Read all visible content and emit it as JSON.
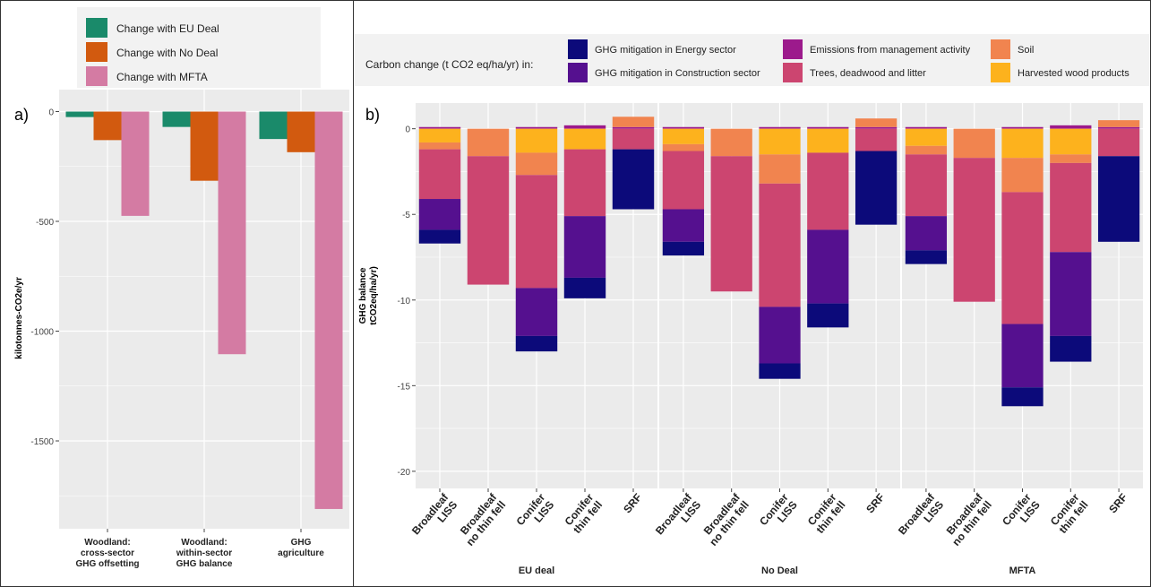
{
  "panel_a": {
    "label": "a)",
    "colors": [
      "#1a8a6a",
      "#d25a0f",
      "#d47ba3"
    ],
    "chart_data": {
      "type": "bar",
      "ylabel": "kilotonnes-CO2e/yr",
      "ylim": [
        -1900,
        100
      ],
      "yticks": [
        0,
        -500,
        -1000,
        -1500
      ],
      "categories": [
        [
          "Woodland:",
          "cross-sector",
          "GHG offsetting"
        ],
        [
          "Woodland:",
          "within-sector",
          "GHG balance"
        ],
        [
          "GHG",
          "agriculture"
        ]
      ],
      "series": [
        {
          "name": "Change with EU Deal",
          "values": [
            -25,
            -70,
            -125
          ]
        },
        {
          "name": "Change with No Deal",
          "values": [
            -130,
            -315,
            -185
          ]
        },
        {
          "name": "Change with MFTA",
          "values": [
            -475,
            -1105,
            -1810
          ]
        }
      ],
      "legend_position": "top"
    }
  },
  "panel_b": {
    "label": "b)",
    "legend_title": "Carbon change (t CO2 eq/ha/yr) in:",
    "legend_items": [
      {
        "key": "energy",
        "name": "GHG mitigation in Energy sector",
        "color": "#0c0a7a"
      },
      {
        "key": "construction",
        "name": "GHG mitigation in Construction sector",
        "color": "#55108f"
      },
      {
        "key": "management",
        "name": "Emissions from management activity",
        "color": "#9c1a8c"
      },
      {
        "key": "trees",
        "name": "Trees, deadwood and litter",
        "color": "#cc4570"
      },
      {
        "key": "soil",
        "name": "Soil",
        "color": "#f1844f"
      },
      {
        "key": "hwp",
        "name": "Harvested wood products",
        "color": "#fdb21d"
      }
    ],
    "chart_data": {
      "type": "bar",
      "stacked": true,
      "ylabel": "GHG balance\ntCO2eq/ha/yr)",
      "ylim": [
        -21,
        1.5
      ],
      "yticks": [
        0,
        -5,
        -10,
        -15,
        -20
      ],
      "facets": [
        {
          "name": "EU deal",
          "categories": [
            {
              "label": [
                "Broadleaf",
                "LISS"
              ],
              "segments": {
                "management": 0.1,
                "hwp": -0.8,
                "soil": -0.4,
                "trees": -2.9,
                "construction": -1.8,
                "energy": -0.8
              }
            },
            {
              "label": [
                "Broadleaf",
                "no thin fell"
              ],
              "segments": {
                "soil": -1.6,
                "trees": -7.5
              }
            },
            {
              "label": [
                "Conifer",
                "LISS"
              ],
              "segments": {
                "management": 0.1,
                "hwp": -1.4,
                "soil": -1.3,
                "trees": -6.6,
                "construction": -2.8,
                "energy": -0.9
              }
            },
            {
              "label": [
                "Conifer",
                "thin fell"
              ],
              "segments": {
                "management": 0.2,
                "hwp": -1.2,
                "trees": -3.9,
                "construction": -3.6,
                "energy": -1.2
              }
            },
            {
              "label": [
                "SRF"
              ],
              "segments": {
                "management": 0.1,
                "soil": 0.6,
                "trees": -1.2,
                "energy": -3.5
              }
            }
          ]
        },
        {
          "name": "No Deal",
          "categories": [
            {
              "label": [
                "Broadleaf",
                "LISS"
              ],
              "segments": {
                "management": 0.1,
                "hwp": -0.9,
                "soil": -0.4,
                "trees": -3.4,
                "construction": -1.9,
                "energy": -0.8
              }
            },
            {
              "label": [
                "Broadleaf",
                "no thin fell"
              ],
              "segments": {
                "soil": -1.6,
                "trees": -7.9
              }
            },
            {
              "label": [
                "Conifer",
                "LISS"
              ],
              "segments": {
                "management": 0.1,
                "hwp": -1.5,
                "soil": -1.7,
                "trees": -7.2,
                "construction": -3.3,
                "energy": -0.9
              }
            },
            {
              "label": [
                "Conifer",
                "thin fell"
              ],
              "segments": {
                "management": 0.1,
                "hwp": -1.4,
                "trees": -4.5,
                "construction": -4.3,
                "energy": -1.4
              }
            },
            {
              "label": [
                "SRF"
              ],
              "segments": {
                "management": 0.1,
                "soil": 0.5,
                "trees": -1.3,
                "energy": -4.3
              }
            }
          ]
        },
        {
          "name": "MFTA",
          "categories": [
            {
              "label": [
                "Broadleaf",
                "LISS"
              ],
              "segments": {
                "management": 0.1,
                "hwp": -1.0,
                "soil": -0.5,
                "trees": -3.6,
                "construction": -2.0,
                "energy": -0.8
              }
            },
            {
              "label": [
                "Broadleaf",
                "no thin fell"
              ],
              "segments": {
                "soil": -1.7,
                "trees": -8.4
              }
            },
            {
              "label": [
                "Conifer",
                "LISS"
              ],
              "segments": {
                "management": 0.1,
                "hwp": -1.7,
                "soil": -2.0,
                "trees": -7.7,
                "construction": -3.7,
                "energy": -1.1
              }
            },
            {
              "label": [
                "Conifer",
                "thin fell"
              ],
              "segments": {
                "management": 0.2,
                "hwp": -1.5,
                "soil": -0.5,
                "trees": -5.2,
                "construction": -4.9,
                "energy": -1.5
              }
            },
            {
              "label": [
                "SRF"
              ],
              "segments": {
                "management": 0.1,
                "soil": 0.4,
                "trees": -1.6,
                "energy": -5.0
              }
            }
          ]
        }
      ]
    }
  }
}
